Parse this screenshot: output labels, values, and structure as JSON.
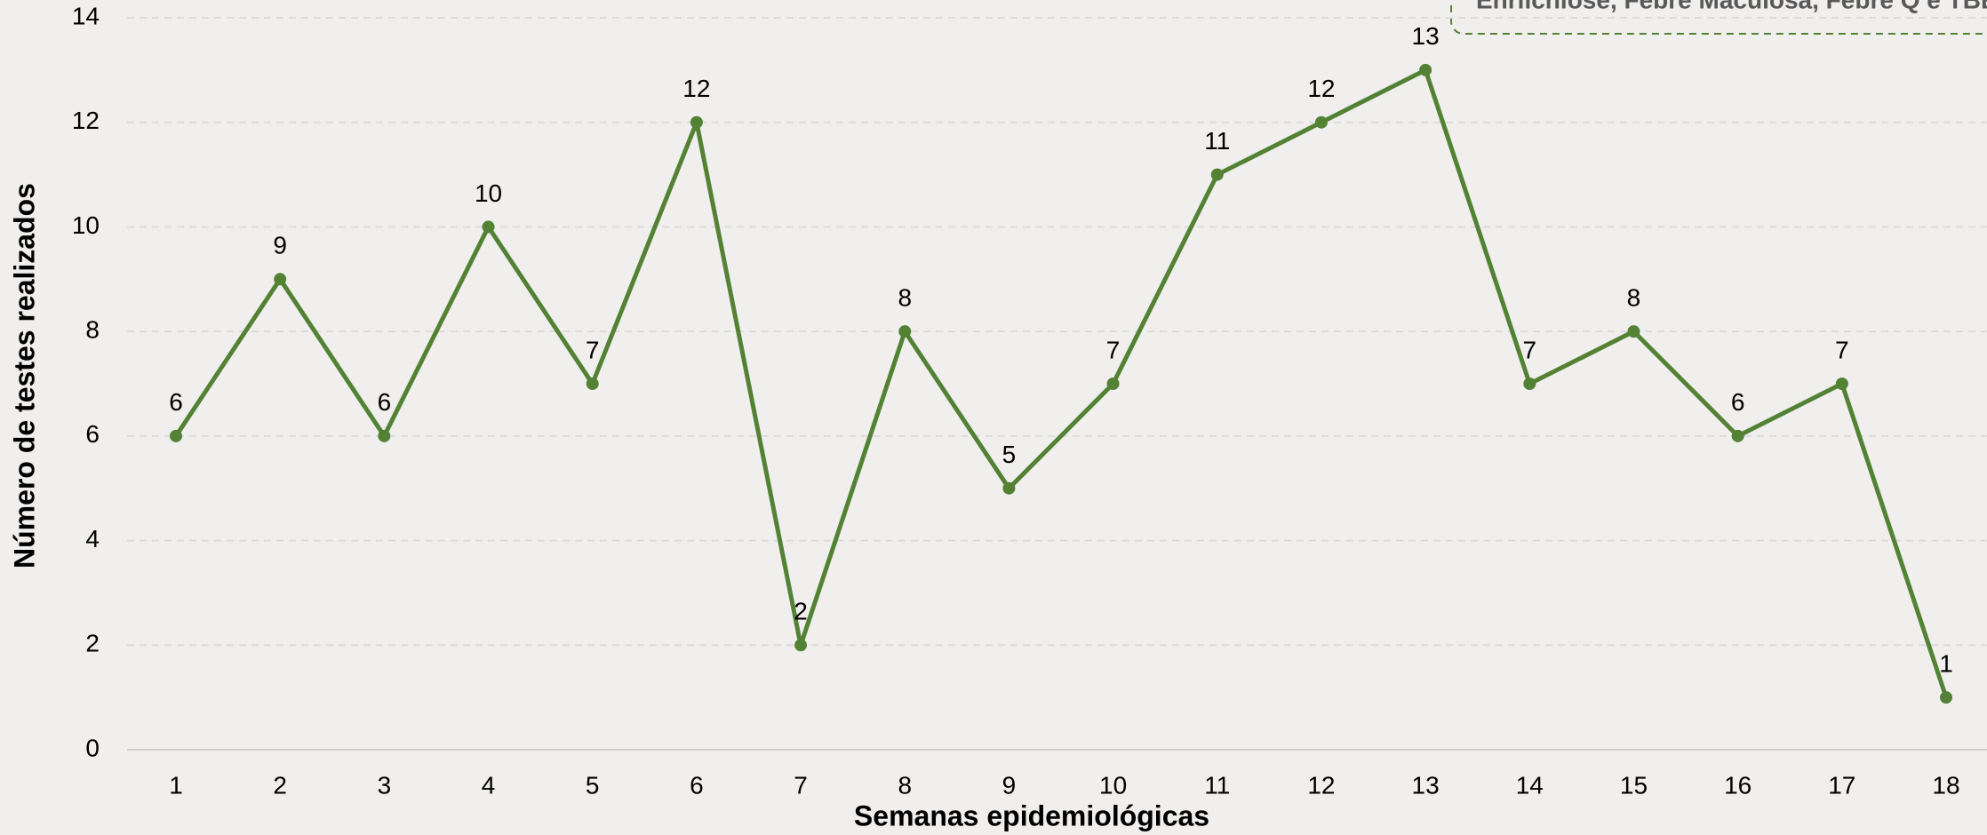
{
  "chart_data": {
    "type": "line",
    "annotation": "Ehrlichiose, Febre Maculosa, Febre Q e TBE",
    "x_label": "Semanas epidemiológicas",
    "y_label": "Número de testes realizados",
    "categories": [
      "1",
      "2",
      "3",
      "4",
      "5",
      "6",
      "7",
      "8",
      "9",
      "10",
      "11",
      "12",
      "13",
      "14",
      "15",
      "16",
      "17",
      "18"
    ],
    "values": [
      6,
      9,
      6,
      10,
      7,
      12,
      2,
      8,
      5,
      7,
      11,
      12,
      13,
      7,
      8,
      6,
      7,
      1
    ],
    "color": "#548235",
    "ylim": [
      0,
      14
    ],
    "yticks": [
      0,
      2,
      4,
      6,
      8,
      10,
      12,
      14
    ],
    "grid": true
  }
}
